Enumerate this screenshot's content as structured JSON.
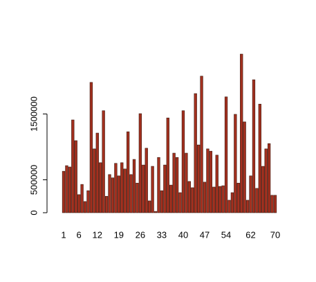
{
  "chart_data": {
    "type": "bar",
    "categories": [
      "1",
      null,
      null,
      null,
      null,
      "6",
      null,
      null,
      null,
      null,
      null,
      "12",
      null,
      null,
      null,
      null,
      null,
      null,
      "19",
      null,
      null,
      null,
      null,
      null,
      null,
      "26",
      null,
      null,
      null,
      null,
      null,
      null,
      "33",
      null,
      null,
      null,
      null,
      null,
      null,
      "40",
      null,
      null,
      null,
      null,
      null,
      null,
      "47",
      null,
      null,
      null,
      null,
      null,
      null,
      "54",
      null,
      null,
      null,
      null,
      null,
      null,
      null,
      "62",
      null,
      null,
      null,
      null,
      null,
      null,
      null,
      "70"
    ],
    "values": [
      630000,
      715000,
      695000,
      1410000,
      1095000,
      275000,
      430000,
      170000,
      335000,
      1980000,
      970000,
      1210000,
      760000,
      1550000,
      250000,
      580000,
      530000,
      750000,
      560000,
      760000,
      665000,
      1230000,
      580000,
      810000,
      450000,
      1505000,
      725000,
      980000,
      180000,
      705000,
      20000,
      840000,
      335000,
      725000,
      1440000,
      420000,
      905000,
      840000,
      305000,
      1550000,
      905000,
      475000,
      380000,
      1810000,
      1030000,
      2075000,
      465000,
      970000,
      935000,
      390000,
      875000,
      400000,
      410000,
      1760000,
      190000,
      305000,
      1495000,
      450000,
      2410000,
      1380000,
      190000,
      560000,
      2020000,
      370000,
      1650000,
      705000,
      970000,
      1050000,
      265000,
      265000
    ],
    "color": "#a3301f",
    "ylim": [
      0,
      2500000
    ],
    "yticks": [
      0,
      500000,
      1500000
    ]
  }
}
